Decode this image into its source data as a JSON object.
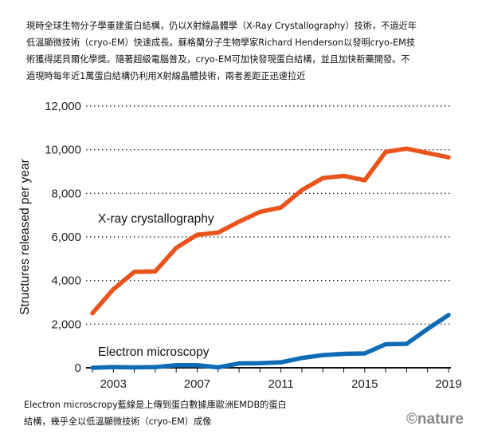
{
  "intro_lines": [
    "現時全球生物分子學重建蛋白結構，仍以X射線晶體學（X-Ray Crystallography）技術，不過近年",
    "低溫顯微技術（cryo-EM）快速成長。蘇格蘭分子生物學家Richard Henderson以發明cryo-EM技",
    "術獲得諾貝爾化學獎。隨著超級電腦普及，cryo-EM可加快發現蛋白結構，並且加快新藥開發。不",
    "過現時每年近1萬蛋白結構仍利用X射線晶體技術，兩者差距正迅速拉近"
  ],
  "note_lines": [
    "Electron microscropy藍線是上傳到蛋白數據庫歐洲EMDB的蛋白",
    "結構，幾乎全以低溫顯微技術（cryo-EM）成像"
  ],
  "credit": "©nature",
  "chart_data": {
    "type": "line",
    "title": "",
    "xlabel": "",
    "ylabel": "Structures released per year",
    "x": [
      2002,
      2003,
      2004,
      2005,
      2006,
      2007,
      2008,
      2009,
      2010,
      2011,
      2012,
      2013,
      2014,
      2015,
      2016,
      2017,
      2018,
      2019
    ],
    "xlim": [
      2002,
      2019
    ],
    "ylim": [
      0,
      12000
    ],
    "xticks": [
      "2003",
      "2007",
      "2011",
      "2015",
      "2019"
    ],
    "yticks": [
      "0",
      "2,000",
      "4,000",
      "6,000",
      "8,000",
      "10,000",
      "12,000"
    ],
    "grid": "horizontal-dotted",
    "series": [
      {
        "name": "X-ray crystallography",
        "color": "#e8541c",
        "values": [
          2500,
          3600,
          4400,
          4420,
          5500,
          6100,
          6200,
          6700,
          7150,
          7350,
          8150,
          8700,
          8800,
          8600,
          9900,
          10050,
          9850,
          9650
        ]
      },
      {
        "name": "Electron microscopy",
        "color": "#0f6cb4",
        "values": [
          0,
          30,
          20,
          30,
          120,
          120,
          20,
          200,
          210,
          250,
          450,
          580,
          640,
          660,
          1080,
          1100,
          1780,
          2420
        ]
      }
    ]
  }
}
